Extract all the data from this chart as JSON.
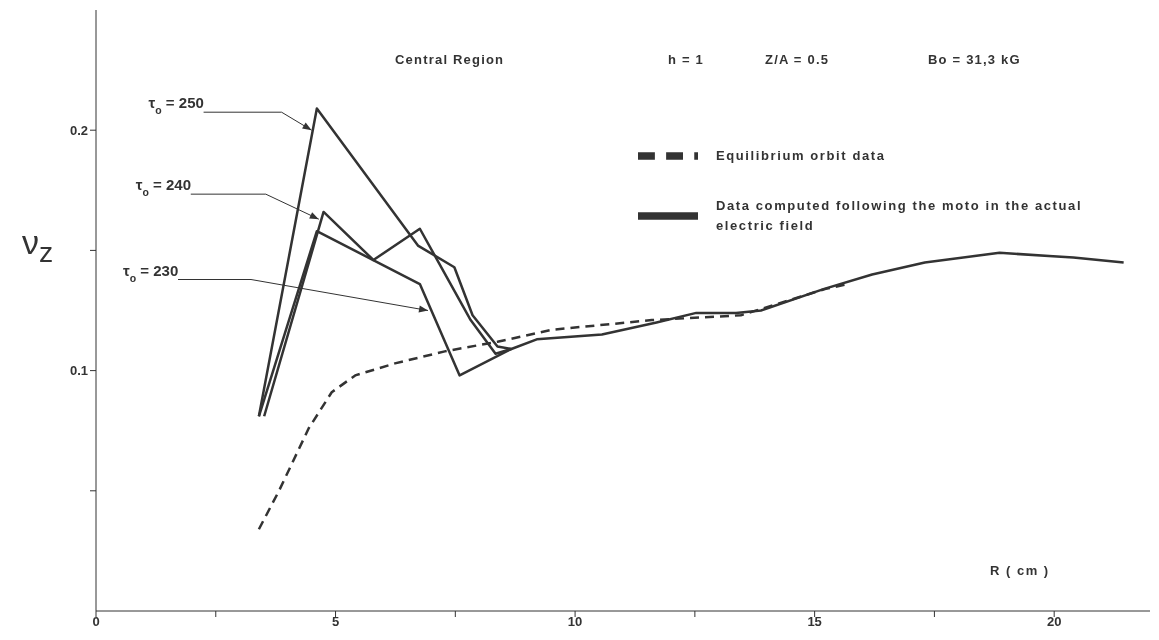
{
  "chart_data": {
    "type": "line",
    "xlabel": "R ( cm )",
    "ylabel": "ν$_{z}$",
    "annotations": [
      "Central Region",
      "h = 1",
      "Z/A = 0.5",
      "Bo = 31,3 kG",
      {
        "text": "τ$_{o}$ = 250",
        "x": 4.5,
        "y": 0.2
      },
      {
        "text": "τ$_{o}$ = 240",
        "x": 4.65,
        "y": 0.163
      },
      {
        "text": "τ$_{o}$ = 230",
        "x": 6.93,
        "y": 0.125
      }
    ],
    "series": [
      {
        "name": "Equilibrium orbit data",
        "color": "#333333",
        "line_style": "dashed",
        "x": [
          3.4,
          3.82,
          4.44,
          4.92,
          5.41,
          6.24,
          7.28,
          8.38,
          9.52,
          11.6,
          13.46,
          15.23,
          15.7
        ],
        "values": [
          0.034,
          0.05,
          0.076,
          0.091,
          0.098,
          0.103,
          0.108,
          0.112,
          0.117,
          0.121,
          0.123,
          0.134,
          0.136
        ]
      },
      {
        "name": "Data computed following the moto in the actual electric field",
        "color": "#333333",
        "line_style": "solid",
        "x": [
          3.4,
          4.61,
          6.76,
          7.59,
          8.67,
          9.2,
          10.56,
          11.7,
          12.53,
          13.36,
          13.88,
          15.2,
          16.2,
          17.3,
          18.86,
          20.4,
          21.45
        ],
        "values": [
          0.081,
          0.158,
          0.136,
          0.098,
          0.109,
          0.113,
          0.115,
          0.12,
          0.124,
          0.124,
          0.125,
          0.134,
          0.14,
          0.145,
          0.149,
          0.147,
          0.145
        ]
      },
      {
        "color": "#333333",
        "line_style": "solid",
        "x": [
          3.4,
          4.61,
          6.72,
          7.48,
          7.86,
          8.38,
          8.67
        ],
        "values": [
          0.081,
          0.209,
          0.152,
          0.143,
          0.123,
          0.11,
          0.109
        ]
      },
      {
        "color": "#333333",
        "line_style": "solid",
        "x": [
          3.51,
          4.75,
          5.79,
          6.76,
          7.82,
          8.34,
          8.67
        ],
        "values": [
          0.081,
          0.166,
          0.146,
          0.159,
          0.121,
          0.107,
          0.109
        ]
      }
    ],
    "xlim": [
      0,
      22
    ],
    "ylim": [
      0,
      0.25
    ],
    "xticks": [
      0,
      {
        "value": 2.5,
        "label": null
      },
      5,
      {
        "value": 7.5,
        "label": null
      },
      10,
      {
        "value": 12.5,
        "label": null
      },
      15,
      {
        "value": 17.5,
        "label": null
      },
      20
    ],
    "yticks": [
      {
        "value": 0.05,
        "label": null
      },
      0.1,
      {
        "value": 0.15,
        "label": null
      },
      0.2
    ],
    "legend": "top right"
  }
}
